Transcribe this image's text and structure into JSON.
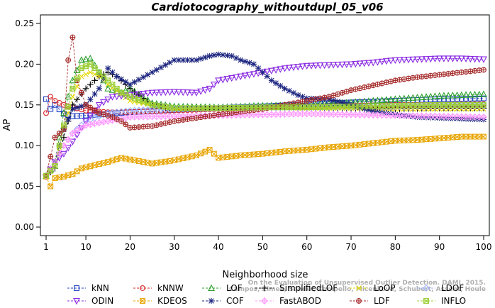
{
  "chart_data": {
    "type": "line",
    "title": "Cardiotocography_withoutdupl_05_v06",
    "xlabel": "Neighborhood size",
    "ylabel": "AP",
    "xlim": [
      1,
      100
    ],
    "ylim": [
      0,
      0.25
    ],
    "x_ticks": [
      1,
      10,
      20,
      30,
      40,
      50,
      60,
      70,
      80,
      90,
      100
    ],
    "y_ticks": [
      0.0,
      0.05,
      0.1,
      0.15,
      0.2,
      0.25
    ],
    "y_tick_labels": [
      "0.00",
      "0.05",
      "0.10",
      "0.15",
      "0.20",
      "0.25"
    ],
    "grid": false,
    "legend_position": "bottom",
    "watermark": [
      "Campos, Zimek, Sander, Campello, Micenková, Schubert, Assent, Houle",
      "On the Evaluation of Unsupervised Outlier Detection. DAMI, 2015."
    ],
    "series": [
      {
        "name": "kNN",
        "color": "#1f3fbf",
        "marker": "square",
        "points": [
          [
            1,
            0.157
          ],
          [
            2,
            0.145
          ],
          [
            3,
            0.15
          ],
          [
            5,
            0.139
          ],
          [
            7,
            0.136
          ],
          [
            10,
            0.137
          ],
          [
            15,
            0.139
          ],
          [
            20,
            0.141
          ],
          [
            30,
            0.144
          ],
          [
            40,
            0.146
          ],
          [
            50,
            0.148
          ],
          [
            60,
            0.151
          ],
          [
            70,
            0.153
          ],
          [
            80,
            0.155
          ],
          [
            90,
            0.157
          ],
          [
            100,
            0.158
          ]
        ]
      },
      {
        "name": "kNNW",
        "color": "#d62728",
        "marker": "circle",
        "points": [
          [
            1,
            0.14
          ],
          [
            2,
            0.16
          ],
          [
            3,
            0.155
          ],
          [
            5,
            0.15
          ],
          [
            7,
            0.147
          ],
          [
            10,
            0.143
          ],
          [
            15,
            0.141
          ],
          [
            20,
            0.141
          ],
          [
            30,
            0.143
          ],
          [
            40,
            0.145
          ],
          [
            50,
            0.147
          ],
          [
            60,
            0.148
          ],
          [
            70,
            0.149
          ],
          [
            80,
            0.15
          ],
          [
            90,
            0.15
          ],
          [
            100,
            0.151
          ]
        ]
      },
      {
        "name": "LOF",
        "color": "#2ca02c",
        "marker": "triangle-up",
        "points": [
          [
            1,
            0.063
          ],
          [
            3,
            0.08
          ],
          [
            5,
            0.14
          ],
          [
            7,
            0.18
          ],
          [
            9,
            0.205
          ],
          [
            11,
            0.207
          ],
          [
            13,
            0.19
          ],
          [
            15,
            0.17
          ],
          [
            18,
            0.165
          ],
          [
            20,
            0.17
          ],
          [
            25,
            0.152
          ],
          [
            30,
            0.148
          ],
          [
            40,
            0.147
          ],
          [
            50,
            0.149
          ],
          [
            60,
            0.15
          ],
          [
            70,
            0.153
          ],
          [
            80,
            0.157
          ],
          [
            90,
            0.161
          ],
          [
            100,
            0.163
          ]
        ]
      },
      {
        "name": "SimplifiedLOF",
        "color": "#000000",
        "marker": "plus",
        "points": [
          [
            1,
            0.063
          ],
          [
            3,
            0.072
          ],
          [
            5,
            0.11
          ],
          [
            7,
            0.15
          ],
          [
            10,
            0.17
          ],
          [
            13,
            0.185
          ],
          [
            15,
            0.19
          ],
          [
            17,
            0.185
          ],
          [
            20,
            0.17
          ],
          [
            25,
            0.15
          ],
          [
            30,
            0.145
          ],
          [
            40,
            0.146
          ],
          [
            50,
            0.147
          ],
          [
            60,
            0.146
          ],
          [
            70,
            0.145
          ],
          [
            80,
            0.145
          ],
          [
            90,
            0.146
          ],
          [
            100,
            0.146
          ]
        ]
      },
      {
        "name": "LoOP",
        "color": "#e6d800",
        "marker": "cross",
        "points": [
          [
            1,
            0.063
          ],
          [
            3,
            0.075
          ],
          [
            5,
            0.12
          ],
          [
            7,
            0.16
          ],
          [
            9,
            0.185
          ],
          [
            11,
            0.19
          ],
          [
            13,
            0.185
          ],
          [
            15,
            0.175
          ],
          [
            20,
            0.155
          ],
          [
            30,
            0.145
          ],
          [
            40,
            0.146
          ],
          [
            50,
            0.147
          ],
          [
            60,
            0.146
          ],
          [
            70,
            0.146
          ],
          [
            80,
            0.145
          ],
          [
            90,
            0.145
          ],
          [
            100,
            0.145
          ]
        ]
      },
      {
        "name": "LDOF",
        "color": "#9fb3ff",
        "marker": "diamond",
        "points": [
          [
            1,
            0.063
          ],
          [
            3,
            0.08
          ],
          [
            5,
            0.1
          ],
          [
            7,
            0.115
          ],
          [
            10,
            0.13
          ],
          [
            15,
            0.14
          ],
          [
            20,
            0.143
          ],
          [
            30,
            0.145
          ],
          [
            40,
            0.146
          ],
          [
            50,
            0.147
          ],
          [
            60,
            0.147
          ],
          [
            70,
            0.148
          ],
          [
            80,
            0.148
          ],
          [
            90,
            0.149
          ],
          [
            100,
            0.149
          ]
        ]
      },
      {
        "name": "ODIN",
        "color": "#8a2be2",
        "marker": "triangle-down",
        "points": [
          [
            1,
            0.062
          ],
          [
            3,
            0.08
          ],
          [
            5,
            0.09
          ],
          [
            7,
            0.105
          ],
          [
            10,
            0.13
          ],
          [
            13,
            0.15
          ],
          [
            16,
            0.16
          ],
          [
            20,
            0.162
          ],
          [
            25,
            0.165
          ],
          [
            30,
            0.166
          ],
          [
            35,
            0.165
          ],
          [
            38,
            0.17
          ],
          [
            40,
            0.18
          ],
          [
            45,
            0.185
          ],
          [
            48,
            0.188
          ],
          [
            50,
            0.19
          ],
          [
            55,
            0.195
          ],
          [
            60,
            0.198
          ],
          [
            65,
            0.199
          ],
          [
            70,
            0.2
          ],
          [
            75,
            0.202
          ],
          [
            80,
            0.205
          ],
          [
            85,
            0.206
          ],
          [
            90,
            0.207
          ],
          [
            95,
            0.207
          ],
          [
            100,
            0.206
          ]
        ]
      },
      {
        "name": "KDEOS",
        "color": "#e8a500",
        "marker": "square-x",
        "points": [
          [
            1,
            0.062
          ],
          [
            2,
            0.05
          ],
          [
            3,
            0.06
          ],
          [
            5,
            0.062
          ],
          [
            7,
            0.065
          ],
          [
            9,
            0.072
          ],
          [
            12,
            0.076
          ],
          [
            15,
            0.08
          ],
          [
            18,
            0.085
          ],
          [
            20,
            0.083
          ],
          [
            25,
            0.078
          ],
          [
            30,
            0.082
          ],
          [
            35,
            0.088
          ],
          [
            38,
            0.095
          ],
          [
            40,
            0.085
          ],
          [
            45,
            0.088
          ],
          [
            50,
            0.09
          ],
          [
            55,
            0.093
          ],
          [
            60,
            0.095
          ],
          [
            65,
            0.098
          ],
          [
            70,
            0.1
          ],
          [
            75,
            0.103
          ],
          [
            80,
            0.106
          ],
          [
            85,
            0.107
          ],
          [
            90,
            0.109
          ],
          [
            95,
            0.111
          ],
          [
            100,
            0.111
          ]
        ]
      },
      {
        "name": "COF",
        "color": "#1a237e",
        "marker": "asterisk",
        "points": [
          [
            1,
            0.063
          ],
          [
            3,
            0.08
          ],
          [
            5,
            0.12
          ],
          [
            7,
            0.145
          ],
          [
            10,
            0.15
          ],
          [
            13,
            0.17
          ],
          [
            15,
            0.195
          ],
          [
            17,
            0.185
          ],
          [
            20,
            0.175
          ],
          [
            25,
            0.19
          ],
          [
            30,
            0.205
          ],
          [
            35,
            0.205
          ],
          [
            38,
            0.21
          ],
          [
            40,
            0.212
          ],
          [
            43,
            0.21
          ],
          [
            45,
            0.205
          ],
          [
            48,
            0.2
          ],
          [
            50,
            0.19
          ],
          [
            52,
            0.18
          ],
          [
            55,
            0.17
          ],
          [
            58,
            0.162
          ],
          [
            60,
            0.158
          ],
          [
            65,
            0.157
          ],
          [
            70,
            0.15
          ],
          [
            75,
            0.142
          ],
          [
            80,
            0.138
          ],
          [
            85,
            0.135
          ],
          [
            90,
            0.134
          ],
          [
            95,
            0.133
          ],
          [
            100,
            0.132
          ]
        ]
      },
      {
        "name": "FastABOD",
        "color": "#ff99ff",
        "marker": "diamond-plus",
        "points": [
          [
            1,
            0.063
          ],
          [
            3,
            0.08
          ],
          [
            5,
            0.1
          ],
          [
            7,
            0.115
          ],
          [
            10,
            0.125
          ],
          [
            15,
            0.13
          ],
          [
            20,
            0.135
          ],
          [
            30,
            0.136
          ],
          [
            40,
            0.137
          ],
          [
            50,
            0.138
          ],
          [
            60,
            0.139
          ],
          [
            70,
            0.138
          ],
          [
            80,
            0.137
          ],
          [
            90,
            0.136
          ],
          [
            100,
            0.135
          ]
        ]
      },
      {
        "name": "LDF",
        "color": "#a52a2a",
        "marker": "circle-plus",
        "points": [
          [
            1,
            0.063
          ],
          [
            3,
            0.11
          ],
          [
            5,
            0.12
          ],
          [
            6,
            0.205
          ],
          [
            7,
            0.233
          ],
          [
            8,
            0.18
          ],
          [
            10,
            0.15
          ],
          [
            13,
            0.14
          ],
          [
            16,
            0.135
          ],
          [
            18,
            0.13
          ],
          [
            20,
            0.122
          ],
          [
            25,
            0.124
          ],
          [
            30,
            0.13
          ],
          [
            40,
            0.138
          ],
          [
            50,
            0.145
          ],
          [
            60,
            0.155
          ],
          [
            65,
            0.16
          ],
          [
            70,
            0.168
          ],
          [
            75,
            0.174
          ],
          [
            80,
            0.18
          ],
          [
            85,
            0.184
          ],
          [
            90,
            0.187
          ],
          [
            95,
            0.19
          ],
          [
            100,
            0.193
          ]
        ]
      },
      {
        "name": "INFLO",
        "color": "#9acd32",
        "marker": "square-star",
        "points": [
          [
            1,
            0.063
          ],
          [
            3,
            0.075
          ],
          [
            5,
            0.125
          ],
          [
            7,
            0.17
          ],
          [
            9,
            0.195
          ],
          [
            11,
            0.2
          ],
          [
            13,
            0.19
          ],
          [
            15,
            0.18
          ],
          [
            18,
            0.165
          ],
          [
            20,
            0.16
          ],
          [
            25,
            0.15
          ],
          [
            30,
            0.146
          ],
          [
            40,
            0.146
          ],
          [
            50,
            0.147
          ],
          [
            60,
            0.147
          ],
          [
            70,
            0.148
          ],
          [
            80,
            0.149
          ],
          [
            90,
            0.15
          ],
          [
            100,
            0.15
          ]
        ]
      }
    ]
  }
}
